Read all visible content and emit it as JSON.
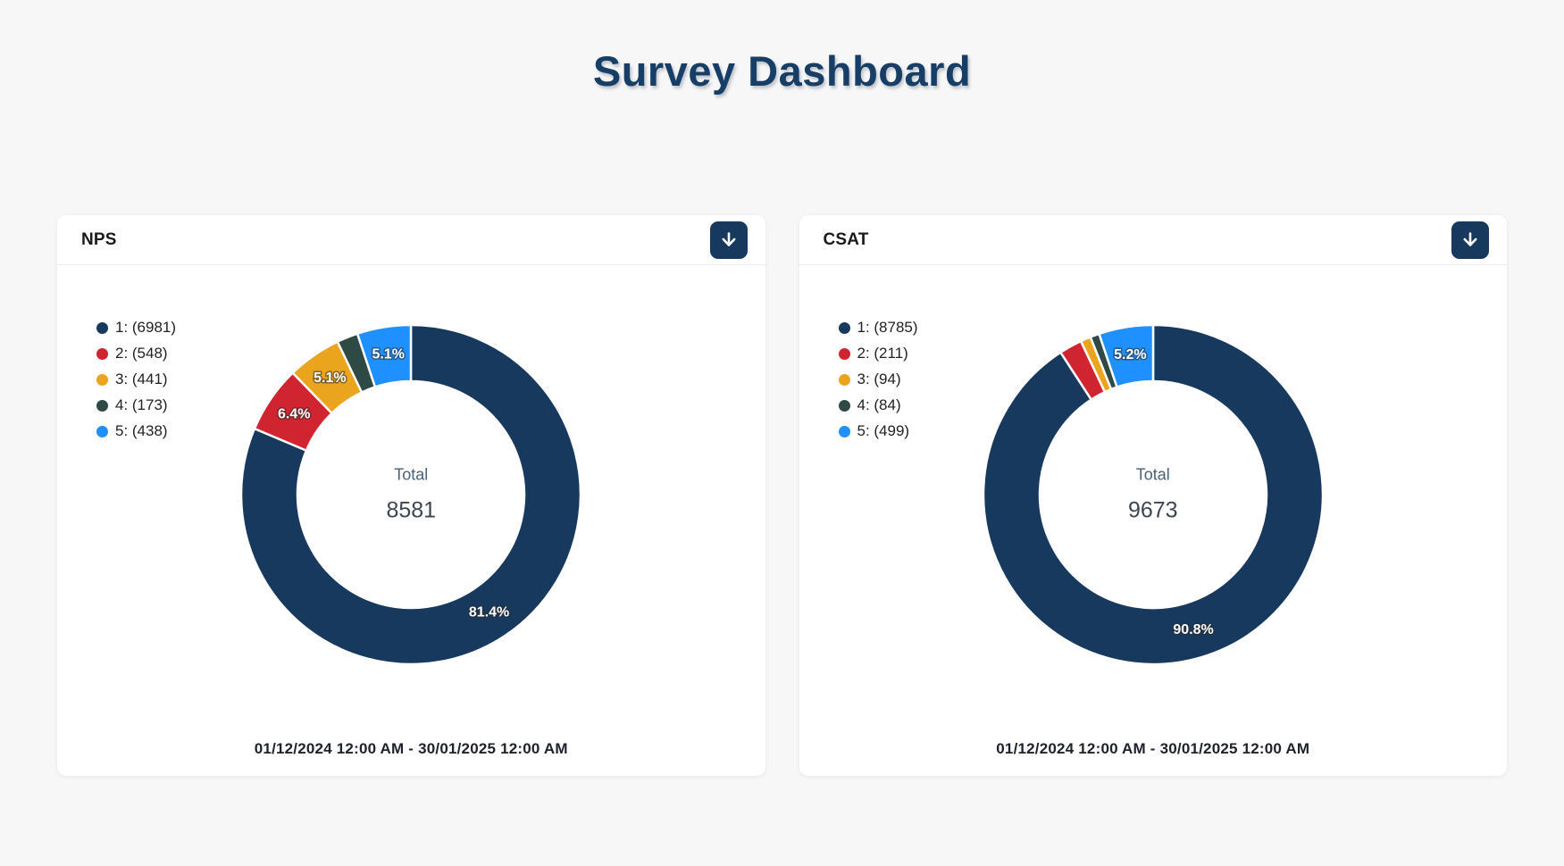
{
  "page": {
    "title": "Survey Dashboard",
    "background_color": "#f7f7f8",
    "accent_color": "#163E66"
  },
  "cards": [
    {
      "title": "NPS",
      "download_button": {
        "icon": "download-arrow",
        "color": "#17395E"
      },
      "date_range": "01/12/2024 12:00 AM - 30/01/2025 12:00 AM"
    },
    {
      "title": "CSAT",
      "download_button": {
        "icon": "download-arrow",
        "color": "#17395E"
      },
      "date_range": "01/12/2024 12:00 AM - 30/01/2025 12:00 AM"
    }
  ],
  "chart_data": [
    {
      "type": "pie",
      "variant": "doughnut",
      "title": "NPS",
      "categories": [
        "1",
        "2",
        "3",
        "4",
        "5"
      ],
      "values": [
        6981,
        548,
        441,
        173,
        438
      ],
      "total": 8581,
      "percent_labels": [
        "81.4%",
        "6.4%",
        "5.1%",
        "",
        "5.1%"
      ],
      "slice_colors": [
        "#17395E",
        "#D02530",
        "#EBA41D",
        "#2F4A44",
        "#1E90FF"
      ],
      "legend_entries": [
        "1: (6981)",
        "2: (548)",
        "3: (441)",
        "4: (173)",
        "5: (438)"
      ],
      "legend_position": "top-left",
      "center": {
        "label": "Total",
        "value": "8581"
      },
      "cutout_ratio": 0.668,
      "border_color": "#ffffff",
      "start_angle": "top",
      "direction": "clockwise"
    },
    {
      "type": "pie",
      "variant": "doughnut",
      "title": "CSAT",
      "categories": [
        "1",
        "2",
        "3",
        "4",
        "5"
      ],
      "values": [
        8785,
        211,
        94,
        84,
        499
      ],
      "total": 9673,
      "percent_labels": [
        "90.8%",
        "",
        "",
        "",
        "5.2%"
      ],
      "slice_colors": [
        "#17395E",
        "#D02530",
        "#EBA41D",
        "#2F4A44",
        "#1E90FF"
      ],
      "legend_entries": [
        "1: (8785)",
        "2: (211)",
        "3: (94)",
        "4: (84)",
        "5: (499)"
      ],
      "legend_position": "top-left",
      "center": {
        "label": "Total",
        "value": "9673"
      },
      "cutout_ratio": 0.668,
      "border_color": "#ffffff",
      "start_angle": "top",
      "direction": "clockwise"
    }
  ]
}
